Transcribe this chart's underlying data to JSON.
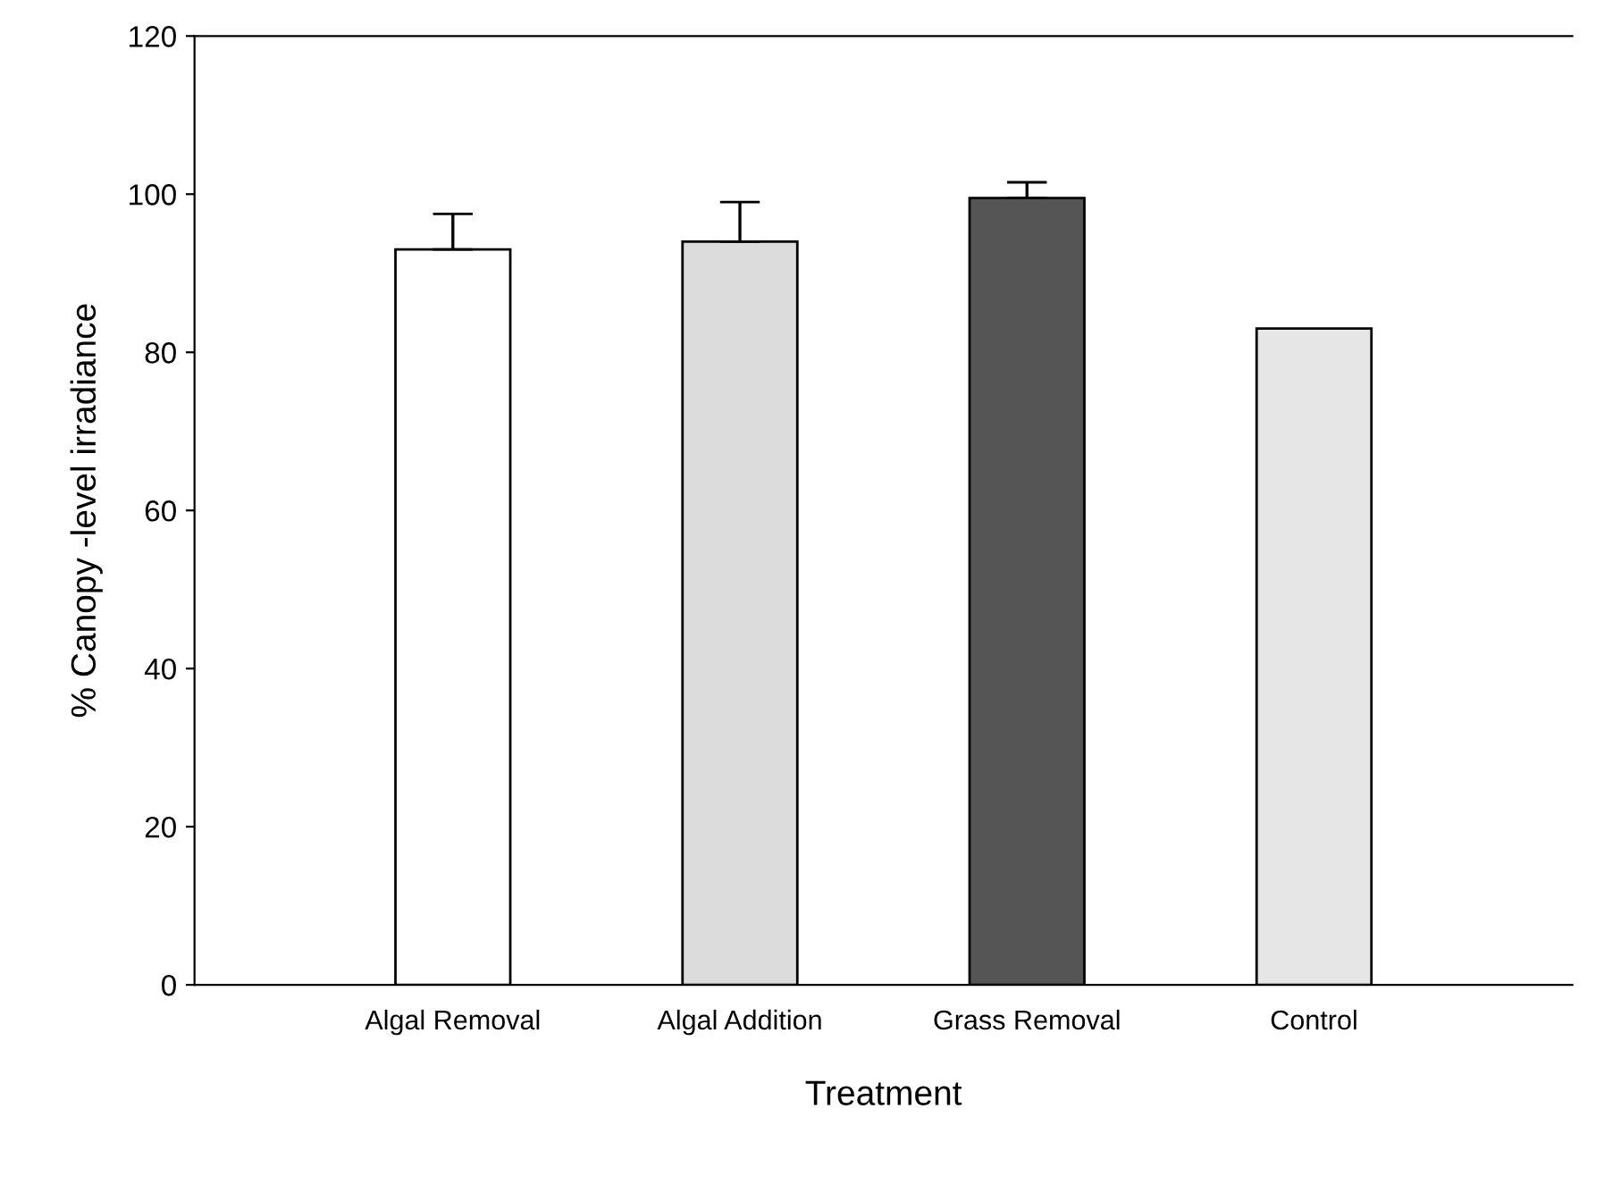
{
  "chart_data": {
    "type": "bar",
    "xlabel": "Treatment",
    "ylabel": "% Canopy -level irradiance",
    "categories": [
      "Algal Removal",
      "Algal Addition",
      "Grass Removal",
      "Control"
    ],
    "values": [
      93,
      94,
      99.5,
      83
    ],
    "errors": [
      4.5,
      5,
      2,
      null
    ],
    "colors": [
      "#ffffff",
      "#dcdcdc",
      "#555555",
      "#e6e6e6"
    ],
    "ylim": [
      0,
      120
    ],
    "yticks": [
      0,
      20,
      40,
      60,
      80,
      100,
      120
    ],
    "grid": false,
    "legend": false
  }
}
